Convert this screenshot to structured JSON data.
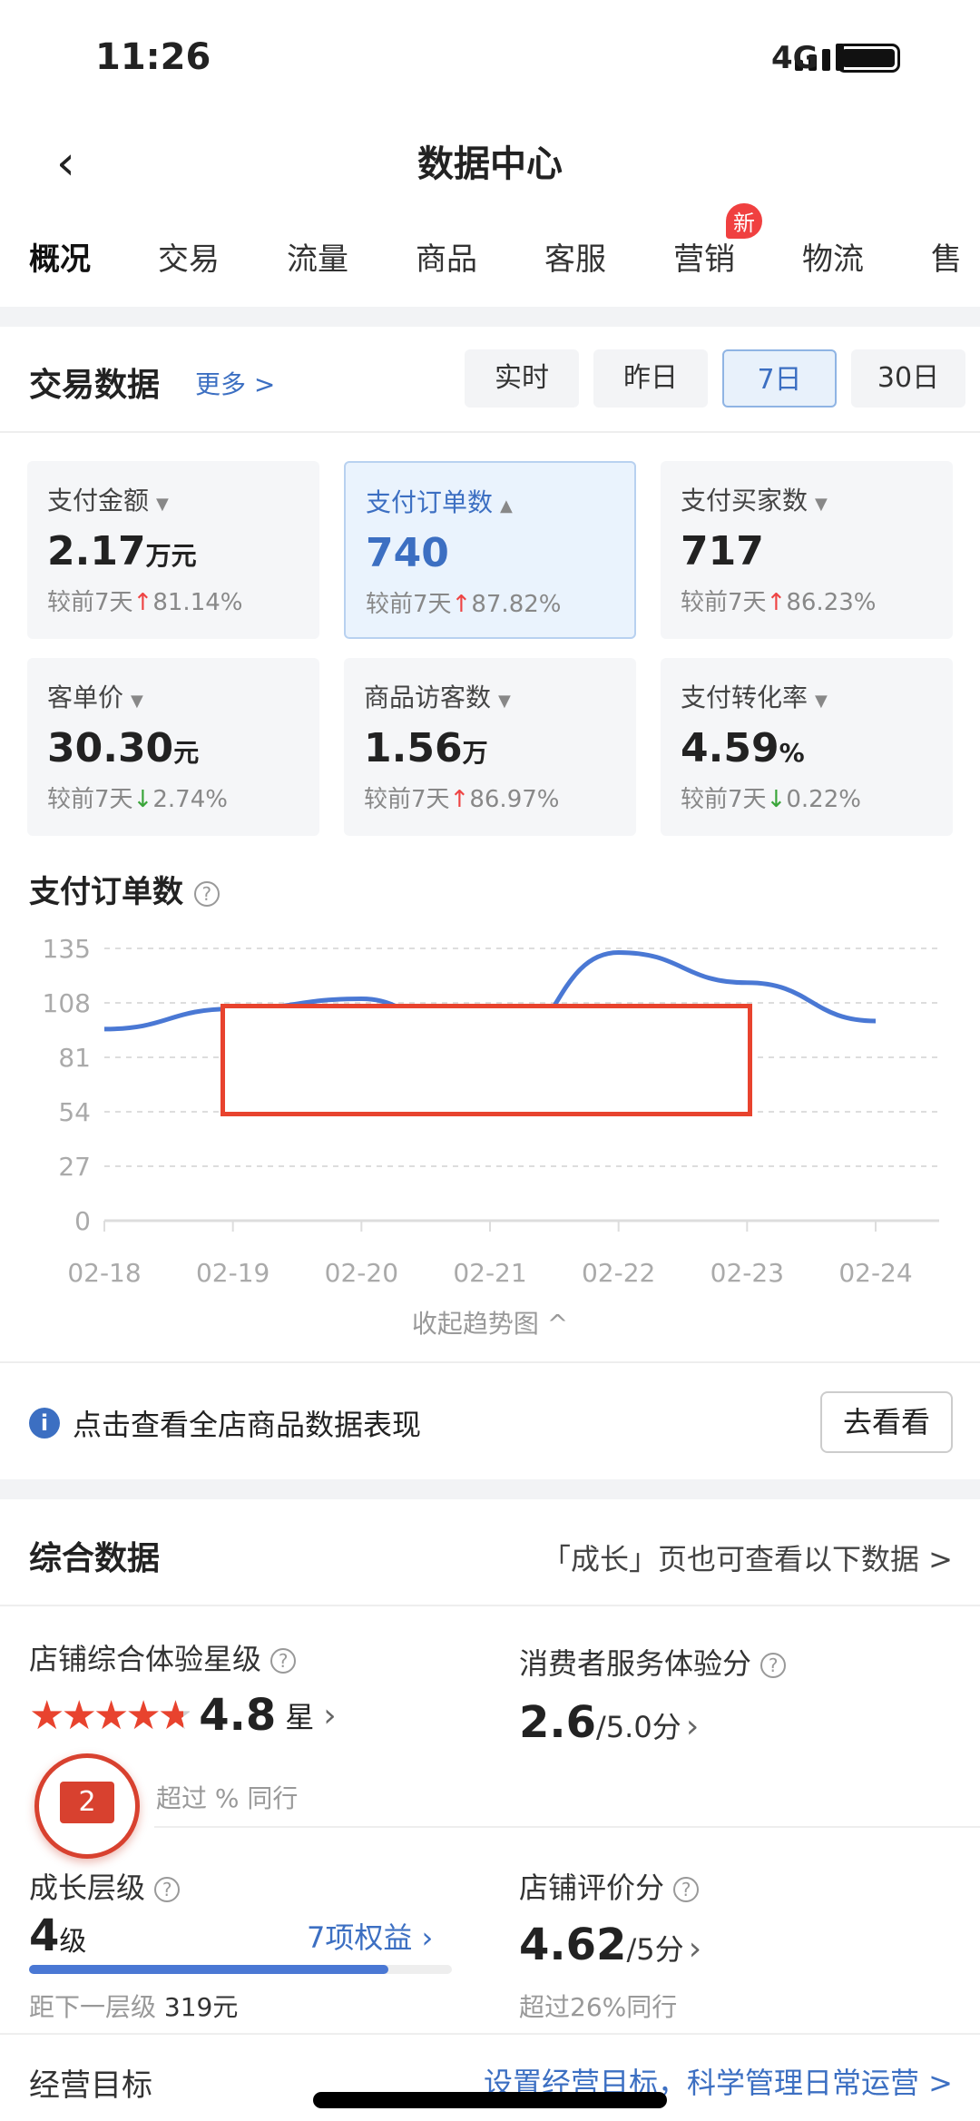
{
  "status": {
    "time": "11:26",
    "network": "4G"
  },
  "nav": {
    "title": "数据中心"
  },
  "tabs": [
    {
      "label": "概况",
      "active": true
    },
    {
      "label": "交易"
    },
    {
      "label": "流量"
    },
    {
      "label": "商品"
    },
    {
      "label": "客服"
    },
    {
      "label": "营销",
      "badge": "新"
    },
    {
      "label": "物流"
    },
    {
      "label": "售"
    }
  ],
  "trade": {
    "title": "交易数据",
    "more": "更多 >",
    "periods": [
      "实时",
      "昨日",
      "7日",
      "30日"
    ],
    "selected_period": "7日",
    "metrics": [
      {
        "label": "支付金额",
        "value": "2.17",
        "unit": "万元",
        "cmp": "较前7天",
        "dir": "up",
        "change": "81.14%"
      },
      {
        "label": "支付订单数",
        "value": "740",
        "unit": "",
        "cmp": "较前7天",
        "dir": "up",
        "change": "87.82%",
        "selected": true
      },
      {
        "label": "支付买家数",
        "value": "717",
        "unit": "",
        "cmp": "较前7天",
        "dir": "up",
        "change": "86.23%"
      },
      {
        "label": "客单价",
        "value": "30.30",
        "unit": "元",
        "cmp": "较前7天",
        "dir": "down",
        "change": "2.74%"
      },
      {
        "label": "商品访客数",
        "value": "1.56",
        "unit": "万",
        "cmp": "较前7天",
        "dir": "up",
        "change": "86.97%"
      },
      {
        "label": "支付转化率",
        "value": "4.59",
        "unit": "%",
        "cmp": "较前7天",
        "dir": "down",
        "change": "0.22%"
      }
    ]
  },
  "chart_data": {
    "type": "line",
    "title": "支付订单数",
    "categories": [
      "02-18",
      "02-19",
      "02-20",
      "02-21",
      "02-22",
      "02-23",
      "02-24"
    ],
    "values": [
      95,
      105,
      110,
      80,
      133,
      118,
      99
    ],
    "yticks": [
      0,
      27,
      54,
      81,
      108,
      135
    ],
    "ylim": [
      0,
      135
    ],
    "grid": true,
    "color": "#4a78d4"
  },
  "collapse": "收起趋势图 ^",
  "info": {
    "text": "点击查看全店商品数据表现",
    "button": "去看看"
  },
  "overall": {
    "title": "综合数据",
    "link": "「成长」页也可查看以下数据 >",
    "star": {
      "label": "店铺综合体验星级",
      "value": "4.8",
      "unit": "星",
      "stars": 4.8,
      "sub": "超过 % 同行"
    },
    "consumer": {
      "label": "消费者服务体验分",
      "value": "2.6",
      "unit": "/5.0分"
    },
    "growth": {
      "label": "成长层级",
      "value": "4",
      "unit": "级",
      "rights": "7项权益",
      "progress": 0.85,
      "sub_label": "距下一层级",
      "sub_value": "319元"
    },
    "review": {
      "label": "店铺评价分",
      "value": "4.62",
      "unit": "/5分",
      "sub": "超过26%同行"
    },
    "goal": {
      "label": "经营目标",
      "link": "设置经营目标，科学管理日常运营 >"
    }
  },
  "float_badge": {
    "count": "2"
  }
}
